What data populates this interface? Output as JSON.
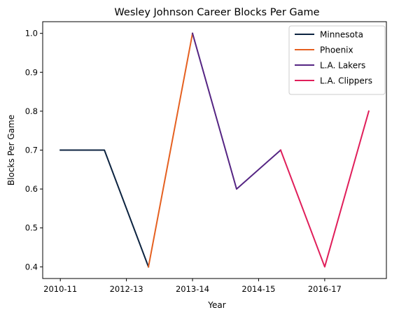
{
  "chart_data": {
    "type": "line",
    "title": "Wesley Johnson  Career Blocks Per Game",
    "xlabel": "Year",
    "ylabel": "Blocks Per Game",
    "x_tick_labels": [
      "2010-11",
      "2012-13",
      "2013-14",
      "2014-15",
      "2016-17"
    ],
    "x_tick_positions": [
      0,
      1.5,
      3,
      4.5,
      6
    ],
    "xlim": [
      -0.4,
      7.4
    ],
    "ylim": [
      0.37,
      1.03
    ],
    "y_ticks": [
      0.4,
      0.5,
      0.6,
      0.7,
      0.8,
      0.9,
      1.0
    ],
    "grid": false,
    "legend_position": "top-right",
    "series": [
      {
        "name": "Minnesota",
        "color": "#0c2340",
        "points": [
          [
            0,
            0.7
          ],
          [
            1,
            0.7
          ],
          [
            2,
            0.4
          ]
        ]
      },
      {
        "name": "Phoenix",
        "color": "#e56020",
        "points": [
          [
            2,
            0.4
          ],
          [
            3,
            1.0
          ]
        ]
      },
      {
        "name": "L.A. Lakers",
        "color": "#552583",
        "points": [
          [
            3,
            1.0
          ],
          [
            4,
            0.6
          ],
          [
            5,
            0.7
          ]
        ]
      },
      {
        "name": "L.A. Clippers",
        "color": "#e01e5a",
        "points": [
          [
            5,
            0.7
          ],
          [
            6,
            0.4
          ],
          [
            7,
            0.8
          ]
        ]
      }
    ]
  }
}
